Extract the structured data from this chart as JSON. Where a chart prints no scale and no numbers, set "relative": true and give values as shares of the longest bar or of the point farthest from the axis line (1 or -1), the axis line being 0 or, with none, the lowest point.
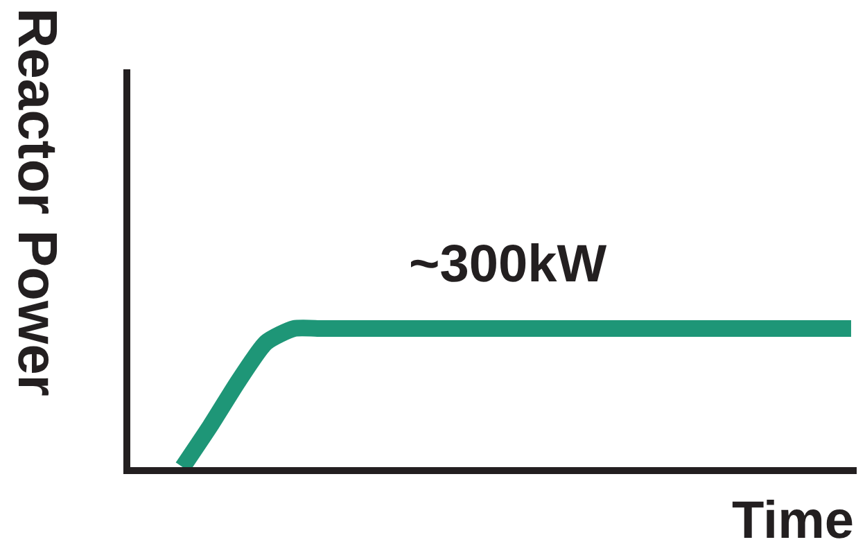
{
  "chart_data": {
    "type": "line",
    "relative": true,
    "xlabel": "Time",
    "ylabel": "Reactor Power",
    "annotations": [
      "~300kW"
    ],
    "categories": [
      null,
      null,
      null,
      null,
      null,
      null,
      null,
      null,
      null,
      null,
      null,
      null,
      null,
      null,
      null,
      null,
      null,
      null,
      null,
      null,
      null,
      null,
      null,
      null,
      null
    ],
    "series": [
      {
        "color": "#1e9677",
        "values": [
          0,
          0.3,
          0.62,
          0.9,
          1,
          1,
          1,
          1,
          1,
          1,
          1,
          1,
          1,
          1,
          1,
          1,
          1,
          1,
          1,
          1,
          1,
          1,
          1,
          1,
          1
        ]
      }
    ],
    "legend": false,
    "marker": "none",
    "line_style": "solid"
  }
}
